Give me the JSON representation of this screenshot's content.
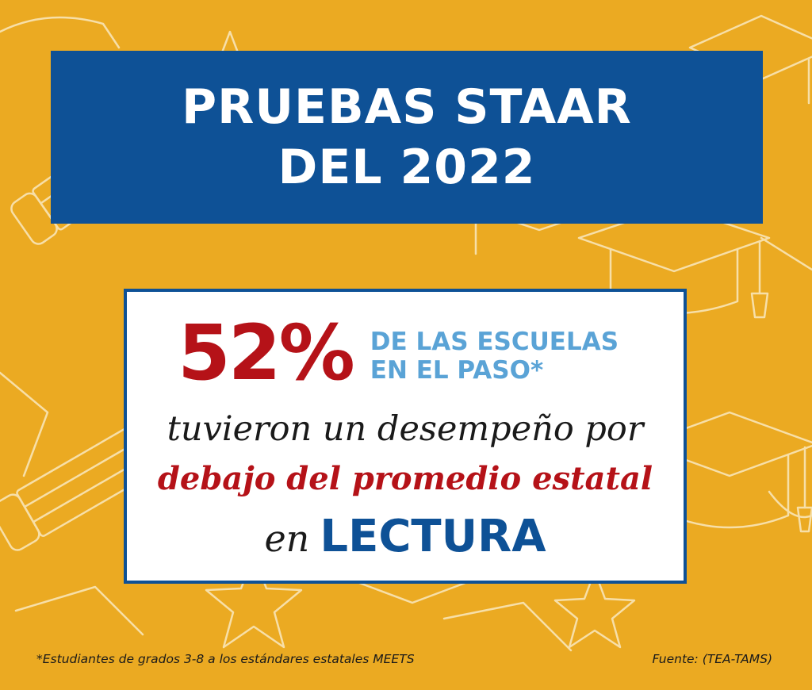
{
  "title": {
    "line1": "PRUEBAS STAAR",
    "line2": "DEL 2022"
  },
  "stat": {
    "value": "52%",
    "label_line1": "DE LAS ESCUELAS",
    "label_line2": "EN EL PASO*"
  },
  "body": {
    "line2": "tuvieron un desempeño por",
    "line3": "debajo del promedio estatal",
    "line4_prefix": "en",
    "subject": "LECTURA"
  },
  "footnote": "*Estudiantes de grados 3-8 a los estándares estatales MEETS",
  "source": "Fuente: (TEA-TAMS)",
  "colors": {
    "background": "#EBAA22",
    "title_box": "#0E5196",
    "accent_red": "#B51218",
    "accent_light_blue": "#5AA3D6"
  },
  "background_icons": [
    "graduation-cap-icon",
    "pencil-icon",
    "star-icon"
  ]
}
